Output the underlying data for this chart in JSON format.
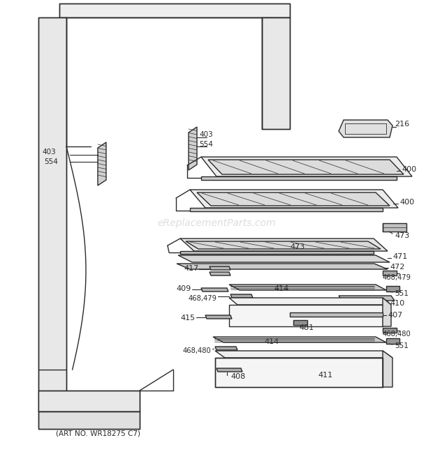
{
  "bg_color": "#ffffff",
  "line_color": "#2a2a2a",
  "watermark": "eReplacementParts.com",
  "watermark_color": "#cccccc",
  "art_no": "(ART NO. WR18275 C7)",
  "lw": 1.0
}
